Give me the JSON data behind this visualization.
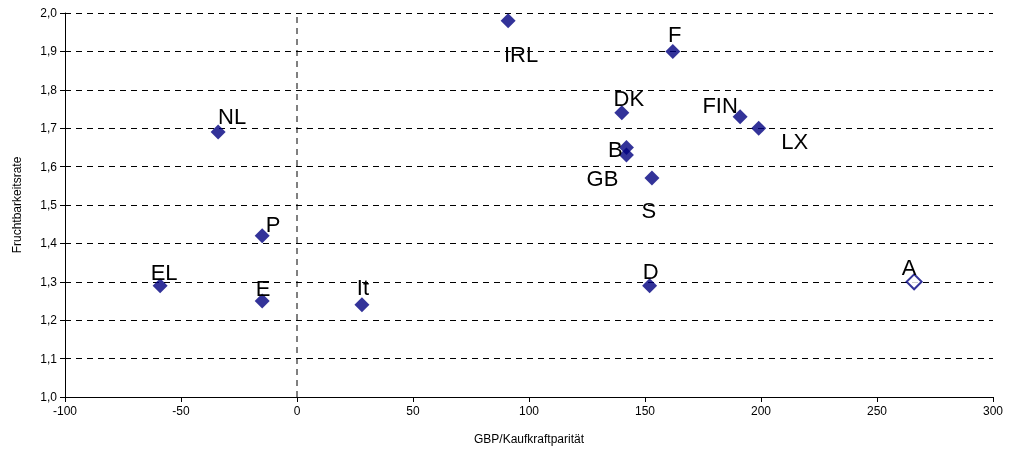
{
  "chart_data": {
    "type": "scatter",
    "xlabel": "GBP/Kaufkraftparität",
    "ylabel": "Fruchtbarkeitsrate",
    "series": [
      {
        "color": "#000080",
        "x": [
          91,
          162,
          140,
          191,
          199,
          142,
          142,
          153,
          -34,
          -15,
          -59,
          -15,
          28,
          152
        ],
        "values": [
          1.98,
          1.9,
          1.74,
          1.73,
          1.7,
          1.65,
          1.63,
          1.57,
          1.69,
          1.42,
          1.29,
          1.25,
          1.24,
          1.29
        ]
      },
      {
        "color": "#000080",
        "x": [
          266
        ],
        "values": [
          1.3
        ]
      }
    ],
    "annotations": [
      {
        "text": "IRL",
        "x": 91,
        "y": 1.98
      },
      {
        "text": "F",
        "x": 162,
        "y": 1.9
      },
      {
        "text": "DK",
        "x": 140,
        "y": 1.74
      },
      {
        "text": "FIN",
        "x": 191,
        "y": 1.73
      },
      {
        "text": "LX",
        "x": 199,
        "y": 1.7
      },
      {
        "text": "B",
        "x": 142,
        "y": 1.65
      },
      {
        "text": "GB",
        "x": 142,
        "y": 1.63
      },
      {
        "text": "S",
        "x": 153,
        "y": 1.57
      },
      {
        "text": "NL",
        "x": -34,
        "y": 1.69
      },
      {
        "text": "P",
        "x": -15,
        "y": 1.42
      },
      {
        "text": "EL",
        "x": -59,
        "y": 1.29
      },
      {
        "text": "E",
        "x": -15,
        "y": 1.25
      },
      {
        "text": "It",
        "x": 28,
        "y": 1.24
      },
      {
        "text": "D",
        "x": 152,
        "y": 1.29
      },
      {
        "text": "A",
        "x": 266,
        "y": 1.3
      }
    ],
    "xlim": [
      -100,
      300
    ],
    "xticks": [
      -100,
      -50,
      0,
      50,
      100,
      150,
      200,
      250,
      300
    ],
    "ylim": [
      1.0,
      2.0
    ],
    "yticks": [
      {
        "value": 1.0,
        "label": "1,0"
      },
      {
        "value": 1.1,
        "label": "1,1"
      },
      {
        "value": 1.2,
        "label": "1,2"
      },
      {
        "value": 1.3,
        "label": "1,3"
      },
      {
        "value": 1.4,
        "label": "1,4"
      },
      {
        "value": 1.5,
        "label": "1,5"
      },
      {
        "value": 1.6,
        "label": "1,6"
      },
      {
        "value": 1.7,
        "label": "1,7"
      },
      {
        "value": 1.8,
        "label": "1,8"
      },
      {
        "value": 1.9,
        "label": "1,9"
      },
      {
        "value": 2.0,
        "label": "2,0"
      }
    ],
    "grid": "y",
    "marker": "diamond",
    "ref_lines": [
      {
        "axis": "x",
        "value": 0,
        "color": "#000000",
        "line_style": "dashed"
      }
    ]
  }
}
